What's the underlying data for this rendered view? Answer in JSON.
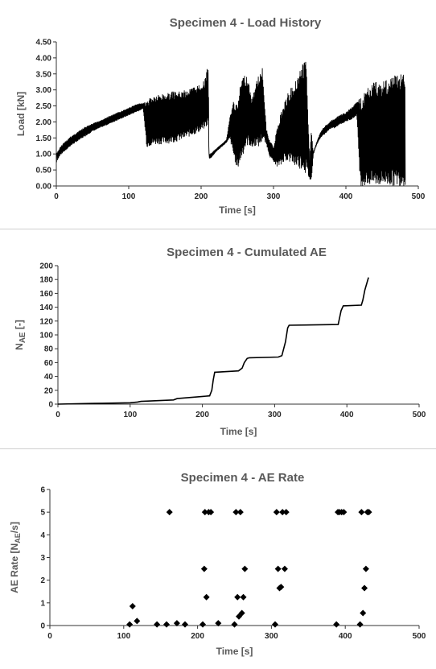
{
  "chart_data": [
    {
      "type": "line",
      "title": "Specimen 4 - Load History",
      "xlabel": "Time [s]",
      "ylabel": "Load [kN]",
      "xlim": [
        0,
        500
      ],
      "ylim": [
        0,
        4.5
      ],
      "xticks": [
        0,
        100,
        200,
        300,
        400,
        500
      ],
      "yticks": [
        0.0,
        0.5,
        1.0,
        1.5,
        2.0,
        2.5,
        3.0,
        3.5,
        4.0,
        4.5
      ],
      "ytick_labels": [
        "0.00",
        "0.50",
        "1.00",
        "1.50",
        "2.00",
        "2.50",
        "3.00",
        "3.50",
        "4.00",
        "4.50"
      ],
      "grid": false,
      "series": [
        {
          "color": "#000000",
          "envelope": true,
          "x": [
            0,
            5,
            10,
            20,
            30,
            40,
            50,
            60,
            70,
            80,
            90,
            100,
            110,
            120,
            125,
            130,
            140,
            150,
            160,
            170,
            180,
            190,
            200,
            205,
            210,
            211,
            212,
            215,
            220,
            225,
            230,
            235,
            240,
            245,
            250,
            255,
            260,
            265,
            270,
            275,
            280,
            285,
            290,
            295,
            300,
            305,
            310,
            315,
            320,
            325,
            330,
            335,
            340,
            345,
            350,
            352,
            355,
            360,
            365,
            370,
            375,
            380,
            385,
            390,
            395,
            400,
            405,
            410,
            415,
            420,
            425,
            430,
            440,
            450,
            460,
            470,
            480,
            482
          ],
          "ymin": [
            0.7,
            0.95,
            1.05,
            1.25,
            1.4,
            1.55,
            1.7,
            1.8,
            1.9,
            2.0,
            2.1,
            2.2,
            2.3,
            2.4,
            1.2,
            1.25,
            1.3,
            1.3,
            1.35,
            1.4,
            1.5,
            1.6,
            1.7,
            1.8,
            1.9,
            0.85,
            0.85,
            0.9,
            1.05,
            1.15,
            1.25,
            1.35,
            1.45,
            0.9,
            0.5,
            0.8,
            1.1,
            1.3,
            1.15,
            1.25,
            1.2,
            1.4,
            1.3,
            0.9,
            0.75,
            0.6,
            0.6,
            0.8,
            0.75,
            0.7,
            0.6,
            0.55,
            0.5,
            0.35,
            0.2,
            0.0,
            1.0,
            1.3,
            1.5,
            1.6,
            1.7,
            1.8,
            1.8,
            1.9,
            1.95,
            2.0,
            2.05,
            2.1,
            2.2,
            0.0,
            0.0,
            0.0,
            0.0,
            0.0,
            0.0,
            0.0,
            0.0,
            0.0
          ],
          "ymax": [
            1.0,
            1.2,
            1.35,
            1.55,
            1.7,
            1.85,
            1.95,
            2.05,
            2.15,
            2.25,
            2.35,
            2.45,
            2.55,
            2.6,
            2.65,
            2.8,
            2.85,
            2.9,
            2.95,
            2.95,
            3.0,
            3.1,
            3.2,
            3.3,
            3.9,
            1.0,
            1.0,
            1.05,
            1.15,
            1.25,
            1.35,
            1.45,
            2.2,
            2.7,
            2.5,
            3.3,
            3.5,
            3.4,
            2.7,
            3.2,
            3.5,
            3.7,
            1.8,
            1.4,
            1.25,
            1.8,
            2.3,
            2.6,
            2.9,
            3.1,
            3.3,
            3.6,
            3.8,
            4.0,
            0.9,
            1.8,
            1.05,
            1.4,
            1.7,
            1.85,
            1.95,
            2.05,
            2.1,
            2.2,
            2.25,
            2.3,
            2.4,
            2.5,
            2.65,
            2.75,
            2.9,
            3.1,
            3.3,
            3.3,
            3.4,
            3.5,
            3.6,
            3.6
          ]
        }
      ]
    },
    {
      "type": "line",
      "title": "Specimen 4 - Cumulated AE",
      "xlabel": "Time [s]",
      "ylabel_main": "N",
      "ylabel_sub": "AE",
      "ylabel_suffix": " [-]",
      "xlim": [
        0,
        500
      ],
      "ylim": [
        0,
        200
      ],
      "xticks": [
        0,
        100,
        200,
        300,
        400,
        500
      ],
      "yticks": [
        0,
        20,
        40,
        60,
        80,
        100,
        120,
        140,
        160,
        180,
        200
      ],
      "grid": false,
      "series": [
        {
          "color": "#000000",
          "x": [
            0,
            50,
            100,
            110,
            115,
            160,
            165,
            210,
            213,
            215,
            217,
            250,
            255,
            258,
            262,
            265,
            305,
            310,
            315,
            318,
            320,
            388,
            390,
            392,
            395,
            420,
            422,
            425,
            430
          ],
          "y": [
            0,
            1,
            2,
            3,
            4,
            6,
            8,
            12,
            20,
            35,
            46,
            48,
            52,
            60,
            66,
            67,
            68,
            70,
            90,
            110,
            114,
            115,
            125,
            135,
            142,
            143,
            150,
            165,
            183
          ]
        }
      ]
    },
    {
      "type": "scatter",
      "title": "Specimen 4 - AE Rate",
      "xlabel": "Time [s]",
      "ylabel_main": "AE Rate [N",
      "ylabel_sub": "AE",
      "ylabel_suffix": "/s]",
      "xlim": [
        0,
        500
      ],
      "ylim": [
        0,
        6
      ],
      "xticks": [
        0,
        100,
        200,
        300,
        400,
        500
      ],
      "yticks": [
        0,
        1,
        2,
        3,
        4,
        5,
        6
      ],
      "grid": false,
      "series": [
        {
          "color": "#000000",
          "marker": "diamond",
          "x": [
            108,
            112,
            118,
            145,
            158,
            162,
            172,
            183,
            207,
            209,
            210,
            212,
            215,
            218,
            228,
            250,
            252,
            254,
            256,
            258,
            260,
            262,
            264,
            305,
            307,
            309,
            311,
            313,
            315,
            318,
            320,
            388,
            390,
            392,
            395,
            398,
            420,
            422,
            424,
            426,
            428,
            430,
            432
          ],
          "y": [
            0.05,
            0.85,
            0.2,
            0.05,
            0.05,
            5.0,
            0.1,
            0.05,
            0.05,
            2.5,
            5.0,
            1.25,
            5.0,
            5.0,
            0.1,
            0.05,
            5.0,
            1.25,
            0.4,
            5.0,
            0.55,
            1.25,
            2.5,
            0.05,
            5.0,
            2.5,
            1.65,
            1.7,
            5.0,
            2.5,
            5.0,
            0.05,
            5.0,
            5.0,
            5.0,
            5.0,
            0.05,
            5.0,
            0.55,
            1.65,
            2.5,
            5.0,
            5.0
          ]
        }
      ]
    }
  ]
}
